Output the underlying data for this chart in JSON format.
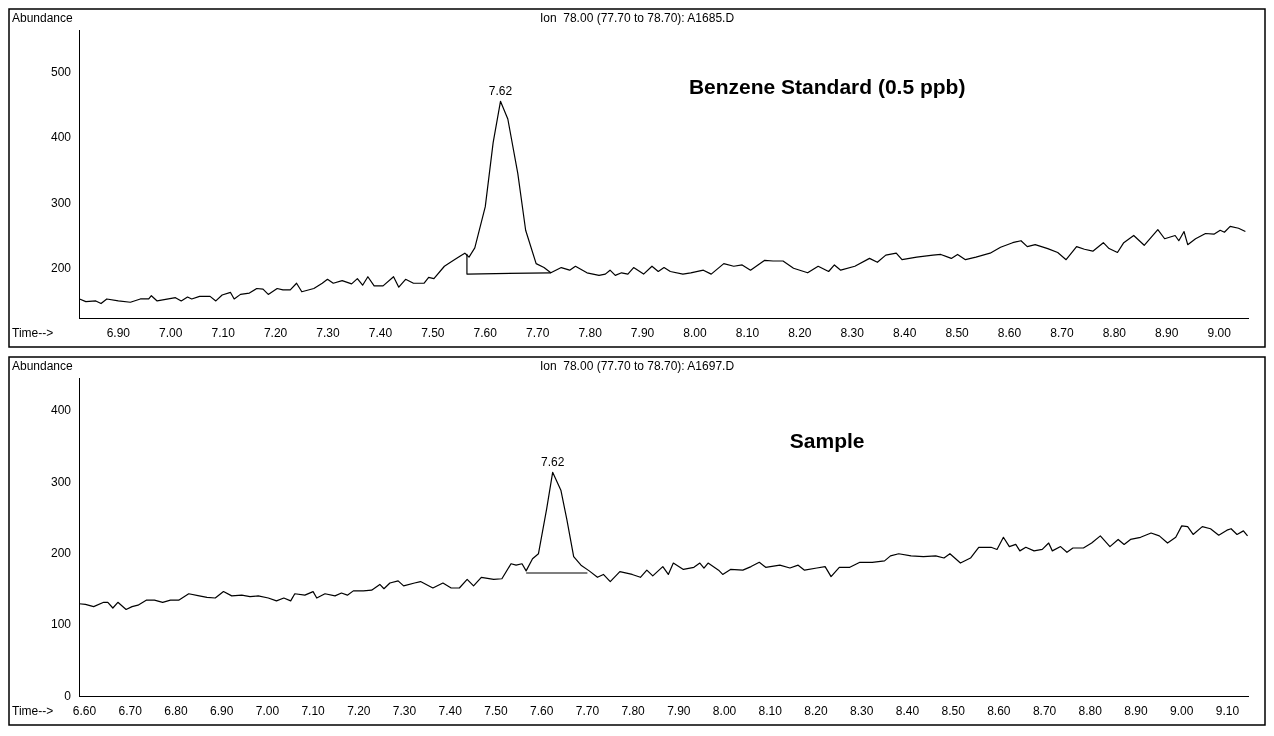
{
  "chart_data": [
    {
      "type": "line",
      "title": "Ion  78.00 (77.70 to 78.70): A1685.D",
      "xlabel": "Time-->",
      "ylabel": "Abundance",
      "xlim": [
        6.825,
        9.055
      ],
      "ylim": [
        124,
        565
      ],
      "xticks": [
        {
          "value": 6.9,
          "label": "6.90"
        },
        {
          "value": 7.0,
          "label": "7.00"
        },
        {
          "value": 7.1,
          "label": "7.10"
        },
        {
          "value": 7.2,
          "label": "7.20"
        },
        {
          "value": 7.3,
          "label": "7.30"
        },
        {
          "value": 7.4,
          "label": "7.40"
        },
        {
          "value": 7.5,
          "label": "7.50"
        },
        {
          "value": 7.6,
          "label": "7.60"
        },
        {
          "value": 7.7,
          "label": "7.70"
        },
        {
          "value": 7.8,
          "label": "7.80"
        },
        {
          "value": 7.9,
          "label": "7.90"
        },
        {
          "value": 8.0,
          "label": "8.00"
        },
        {
          "value": 8.1,
          "label": "8.10"
        },
        {
          "value": 8.2,
          "label": "8.20"
        },
        {
          "value": 8.3,
          "label": "8.30"
        },
        {
          "value": 8.4,
          "label": "8.40"
        },
        {
          "value": 8.5,
          "label": "8.50"
        },
        {
          "value": 8.6,
          "label": "8.60"
        },
        {
          "value": 8.7,
          "label": "8.70"
        },
        {
          "value": 8.8,
          "label": "8.80"
        },
        {
          "value": 8.9,
          "label": "8.90"
        },
        {
          "value": 9.0,
          "label": "9.00"
        }
      ],
      "yticks": [
        200,
        300,
        400,
        500
      ],
      "annotations": [
        {
          "text": "7.62",
          "x": 7.629,
          "y": 456
        },
        "Benzene Standard (0.5 ppb)"
      ],
      "series": [
        {
          "color": "#000000",
          "x": [
            6.826,
            6.838,
            6.857,
            6.867,
            6.878,
            6.9,
            6.923,
            6.942,
            6.958,
            6.963,
            6.974,
            7.009,
            7.02,
            7.032,
            7.04,
            7.055,
            7.075,
            7.086,
            7.098,
            7.114,
            7.121,
            7.133,
            7.15,
            7.164,
            7.176,
            7.186,
            7.203,
            7.214,
            7.228,
            7.24,
            7.25,
            7.273,
            7.289,
            7.299,
            7.31,
            7.327,
            7.345,
            7.356,
            7.366,
            7.376,
            7.388,
            7.405,
            7.425,
            7.435,
            7.448,
            7.463,
            7.483,
            7.492,
            7.502,
            7.522,
            7.541,
            7.561,
            7.569,
            7.58,
            7.6,
            7.615,
            7.629,
            7.643,
            7.662,
            7.677,
            7.697,
            7.712,
            7.725,
            7.745,
            7.761,
            7.772,
            7.794,
            7.817,
            7.829,
            7.838,
            7.848,
            7.86,
            7.872,
            7.883,
            7.902,
            7.918,
            7.93,
            7.941,
            7.953,
            7.977,
            7.992,
            8.016,
            8.031,
            8.055,
            8.074,
            8.09,
            8.106,
            8.133,
            8.149,
            8.168,
            8.188,
            8.215,
            8.235,
            8.255,
            8.266,
            8.278,
            8.305,
            8.333,
            8.348,
            8.364,
            8.384,
            8.395,
            8.423,
            8.454,
            8.469,
            8.489,
            8.501,
            8.516,
            8.536,
            8.563,
            8.583,
            8.606,
            8.622,
            8.634,
            8.649,
            8.673,
            8.692,
            8.708,
            8.728,
            8.743,
            8.759,
            8.779,
            8.79,
            8.806,
            8.818,
            8.837,
            8.857,
            8.883,
            8.896,
            8.916,
            8.923,
            8.933,
            8.94,
            8.955,
            8.974,
            8.99,
            9.002,
            9.01,
            9.021,
            9.037,
            9.05
          ],
          "values": [
            154,
            150,
            151,
            147,
            154,
            151,
            149,
            154,
            154,
            159,
            151,
            156,
            151,
            157,
            154,
            158,
            158,
            151,
            160,
            164,
            154,
            161,
            163,
            170,
            169,
            161,
            170,
            168,
            168,
            178,
            165,
            170,
            178,
            184,
            178,
            182,
            177,
            185,
            175,
            188,
            174,
            174,
            188,
            172,
            184,
            178,
            178,
            187,
            185,
            204,
            214,
            224,
            218,
            232,
            295,
            393,
            456,
            429,
            346,
            259,
            208,
            202,
            194,
            202,
            198,
            204,
            194,
            190,
            192,
            198,
            190,
            194,
            192,
            202,
            192,
            204,
            196,
            202,
            196,
            192,
            194,
            198,
            192,
            208,
            204,
            206,
            198,
            213,
            212,
            212,
            201,
            194,
            204,
            196,
            206,
            198,
            204,
            216,
            210,
            221,
            224,
            214,
            218,
            221,
            222,
            216,
            222,
            214,
            218,
            224,
            233,
            240,
            243,
            234,
            237,
            231,
            225,
            214,
            234,
            230,
            227,
            240,
            231,
            225,
            240,
            251,
            236,
            260,
            246,
            251,
            243,
            257,
            237,
            246,
            254,
            253,
            259,
            256,
            265,
            262,
            257
          ]
        },
        {
          "color": "#000000",
          "x": [
            7.565,
            7.565,
            7.725
          ],
          "values": [
            222,
            192,
            194
          ]
        }
      ]
    },
    {
      "type": "line",
      "title": "Ion  78.00 (77.70 to 78.70): A1697.D",
      "xlabel": "Time-->",
      "ylabel": "Abundance",
      "xlim": [
        6.588,
        9.145
      ],
      "ylim": [
        0,
        446
      ],
      "xticks": [
        {
          "value": 6.6,
          "label": "6.60"
        },
        {
          "value": 6.7,
          "label": "6.70"
        },
        {
          "value": 6.8,
          "label": "6.80"
        },
        {
          "value": 6.9,
          "label": "6.90"
        },
        {
          "value": 7.0,
          "label": "7.00"
        },
        {
          "value": 7.1,
          "label": "7.10"
        },
        {
          "value": 7.2,
          "label": "7.20"
        },
        {
          "value": 7.3,
          "label": "7.30"
        },
        {
          "value": 7.4,
          "label": "7.40"
        },
        {
          "value": 7.5,
          "label": "7.50"
        },
        {
          "value": 7.6,
          "label": "7.60"
        },
        {
          "value": 7.7,
          "label": "7.70"
        },
        {
          "value": 7.8,
          "label": "7.80"
        },
        {
          "value": 7.9,
          "label": "7.90"
        },
        {
          "value": 8.0,
          "label": "8.00"
        },
        {
          "value": 8.1,
          "label": "8.10"
        },
        {
          "value": 8.2,
          "label": "8.20"
        },
        {
          "value": 8.3,
          "label": "8.30"
        },
        {
          "value": 8.4,
          "label": "8.40"
        },
        {
          "value": 8.5,
          "label": "8.50"
        },
        {
          "value": 8.6,
          "label": "8.60"
        },
        {
          "value": 8.7,
          "label": "8.70"
        },
        {
          "value": 8.8,
          "label": "8.80"
        },
        {
          "value": 8.9,
          "label": "8.90"
        },
        {
          "value": 9.0,
          "label": "9.00"
        },
        {
          "value": 9.1,
          "label": "9.10"
        }
      ],
      "yticks": [
        0,
        100,
        200,
        300,
        400
      ],
      "annotations": [
        {
          "text": "7.62",
          "x": 7.624,
          "y": 314
        },
        "Sample"
      ],
      "series": [
        {
          "color": "#000000",
          "x": [
            6.588,
            6.602,
            6.62,
            6.642,
            6.651,
            6.662,
            6.673,
            6.691,
            6.704,
            6.717,
            6.735,
            6.753,
            6.771,
            6.788,
            6.806,
            6.828,
            6.851,
            6.868,
            6.886,
            6.904,
            6.922,
            6.944,
            6.962,
            6.98,
            7.002,
            7.02,
            7.036,
            7.051,
            7.06,
            7.082,
            7.1,
            7.108,
            7.126,
            7.148,
            7.162,
            7.175,
            7.188,
            7.21,
            7.228,
            7.246,
            7.255,
            7.268,
            7.286,
            7.298,
            7.322,
            7.335,
            7.362,
            7.384,
            7.402,
            7.42,
            7.437,
            7.451,
            7.468,
            7.495,
            7.513,
            7.533,
            7.544,
            7.557,
            7.566,
            7.58,
            7.593,
            7.611,
            7.624,
            7.642,
            7.655,
            7.67,
            7.686,
            7.704,
            7.722,
            7.735,
            7.75,
            7.771,
            7.798,
            7.816,
            7.83,
            7.843,
            7.865,
            7.877,
            7.888,
            7.91,
            7.933,
            7.946,
            7.955,
            7.964,
            7.987,
            7.996,
            8.013,
            8.04,
            8.058,
            8.076,
            8.09,
            8.121,
            8.143,
            8.161,
            8.175,
            8.202,
            8.22,
            8.233,
            8.251,
            8.274,
            8.296,
            8.323,
            8.35,
            8.363,
            8.381,
            8.408,
            8.435,
            8.462,
            8.48,
            8.493,
            8.516,
            8.538,
            8.556,
            8.583,
            8.596,
            8.61,
            8.623,
            8.637,
            8.646,
            8.659,
            8.677,
            8.695,
            8.709,
            8.717,
            8.735,
            8.749,
            8.762,
            8.785,
            8.803,
            8.822,
            8.843,
            8.861,
            8.874,
            8.888,
            8.91,
            8.933,
            8.951,
            8.969,
            8.987,
            9.0,
            9.013,
            9.025,
            9.045,
            9.063,
            9.081,
            9.099,
            9.108,
            9.121,
            9.135,
            9.144
          ],
          "values": [
            130,
            129,
            126,
            132,
            132,
            124,
            132,
            122,
            126,
            128,
            135,
            135,
            132,
            135,
            135,
            144,
            141,
            139,
            138,
            147,
            141,
            142,
            140,
            141,
            138,
            134,
            138,
            134,
            144,
            142,
            147,
            138,
            144,
            141,
            145,
            142,
            148,
            148,
            149,
            157,
            151,
            159,
            162,
            155,
            159,
            161,
            152,
            159,
            152,
            152,
            164,
            155,
            167,
            164,
            165,
            186,
            184,
            186,
            176,
            193,
            200,
            263,
            314,
            289,
            248,
            196,
            184,
            176,
            167,
            171,
            161,
            175,
            171,
            167,
            177,
            169,
            182,
            171,
            187,
            178,
            181,
            187,
            180,
            187,
            177,
            171,
            178,
            177,
            182,
            188,
            181,
            184,
            180,
            184,
            177,
            180,
            182,
            168,
            181,
            181,
            188,
            188,
            190,
            197,
            200,
            197,
            196,
            197,
            194,
            200,
            187,
            194,
            209,
            209,
            206,
            223,
            210,
            213,
            204,
            209,
            204,
            206,
            215,
            204,
            210,
            202,
            208,
            208,
            215,
            225,
            210,
            220,
            213,
            220,
            223,
            229,
            225,
            215,
            223,
            239,
            238,
            227,
            238,
            235,
            226,
            233,
            235,
            227,
            232,
            225
          ]
        },
        {
          "color": "#000000",
          "x": [
            7.566,
            7.7
          ],
          "values": [
            173,
            173
          ]
        }
      ]
    }
  ]
}
